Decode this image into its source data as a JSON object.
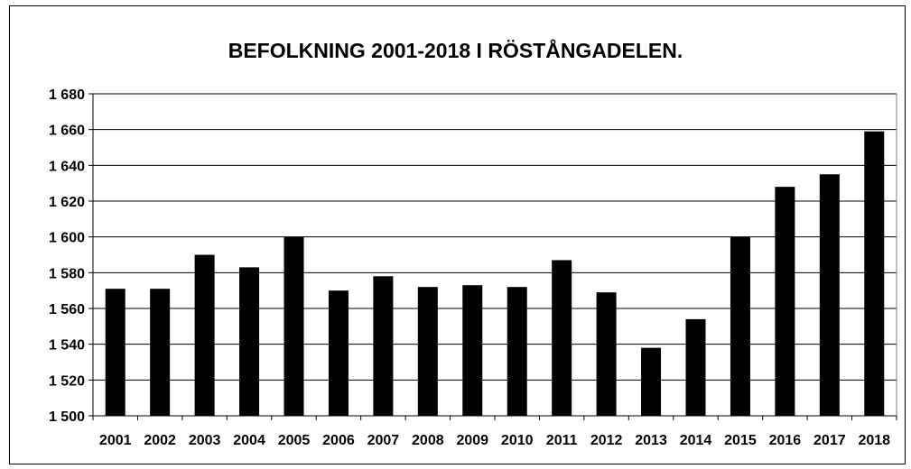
{
  "chart_data": {
    "type": "bar",
    "title": "BEFOLKNING 2001-2018 I RÖSTÅNGADELEN.",
    "xlabel": "",
    "ylabel": "",
    "categories": [
      "2001",
      "2002",
      "2003",
      "2004",
      "2005",
      "2006",
      "2007",
      "2008",
      "2009",
      "2010",
      "2011",
      "2012",
      "2013",
      "2014",
      "2015",
      "2016",
      "2017",
      "2018"
    ],
    "values": [
      1571,
      1571,
      1590,
      1583,
      1600,
      1570,
      1578,
      1572,
      1573,
      1572,
      1587,
      1569,
      1538,
      1554,
      1600,
      1628,
      1635,
      1659
    ],
    "ylim": [
      1500,
      1680
    ],
    "yticks": [
      1500,
      1520,
      1540,
      1560,
      1580,
      1600,
      1620,
      1640,
      1660,
      1680
    ],
    "ytick_labels": [
      "1 500",
      "1 520",
      "1 540",
      "1 560",
      "1 580",
      "1 600",
      "1 620",
      "1 640",
      "1 660",
      "1 680"
    ],
    "grid": true,
    "bar_color": "#000000",
    "legend": "none"
  }
}
